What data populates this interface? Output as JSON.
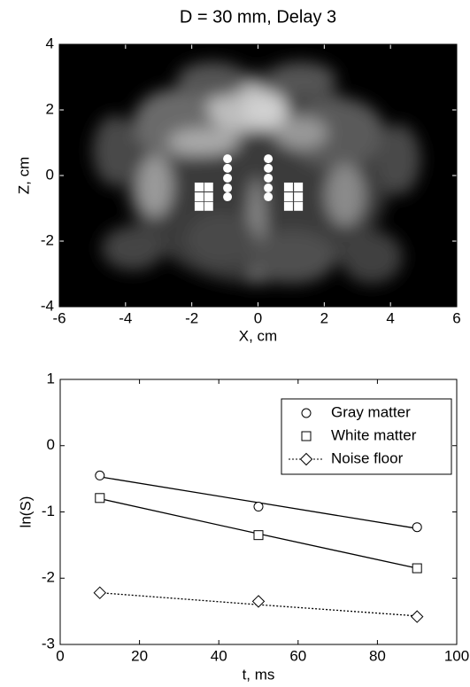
{
  "chart_data": [
    {
      "type": "scatter",
      "title": "D = 30 mm, Delay 3",
      "x_label": "X, cm",
      "y_label": "Z, cm",
      "xlim": [
        -6,
        6
      ],
      "ylim": [
        -4,
        4
      ],
      "xticks": [
        -6,
        -4,
        -2,
        0,
        2,
        4,
        6
      ],
      "yticks": [
        -4,
        -2,
        0,
        2,
        4
      ],
      "series": [
        {
          "marker": "circle",
          "color": "#ffffff",
          "x": [
            -0.92,
            -0.92,
            -0.92,
            -0.92,
            -0.92,
            0.31,
            0.31,
            0.31,
            0.31,
            0.31
          ],
          "values": [
            0.51,
            0.22,
            -0.08,
            -0.38,
            -0.65,
            0.51,
            0.22,
            -0.08,
            -0.38,
            -0.65
          ]
        },
        {
          "marker": "square",
          "color": "#ffffff",
          "x": [
            -1.78,
            -1.49,
            -1.78,
            -1.49,
            -1.78,
            -1.49,
            0.92,
            1.22,
            0.92,
            1.22,
            0.92,
            1.22
          ],
          "values": [
            -0.35,
            -0.35,
            -0.65,
            -0.65,
            -0.94,
            -0.94,
            -0.35,
            -0.35,
            -0.65,
            -0.65,
            -0.94,
            -0.94
          ]
        }
      ]
    },
    {
      "type": "line",
      "x_label": "t, ms",
      "y_label": "ln(S)",
      "xlim": [
        0,
        100
      ],
      "ylim": [
        -3,
        1
      ],
      "xticks": [
        0,
        20,
        40,
        60,
        80,
        100
      ],
      "yticks": [
        -3,
        -2,
        -1,
        0,
        1
      ],
      "legend": "upper right",
      "x": [
        10,
        50,
        90
      ],
      "series": [
        {
          "name": "Gray matter",
          "marker": "circle",
          "line_style": "solid",
          "color": "#000000",
          "values": [
            -0.45,
            -0.92,
            -1.23
          ],
          "fit_values": [
            -0.47,
            -0.86,
            -1.25
          ]
        },
        {
          "name": "White matter",
          "marker": "square",
          "line_style": "solid",
          "color": "#000000",
          "values": [
            -0.79,
            -1.35,
            -1.85
          ],
          "fit_values": [
            -0.8,
            -1.33,
            -1.85
          ]
        },
        {
          "name": "Noise floor",
          "marker": "diamond",
          "line_style": "dotted",
          "color": "#000000",
          "values": [
            -2.22,
            -2.35,
            -2.58
          ],
          "fit_values": [
            -2.22,
            -2.4,
            -2.57
          ]
        }
      ]
    }
  ]
}
